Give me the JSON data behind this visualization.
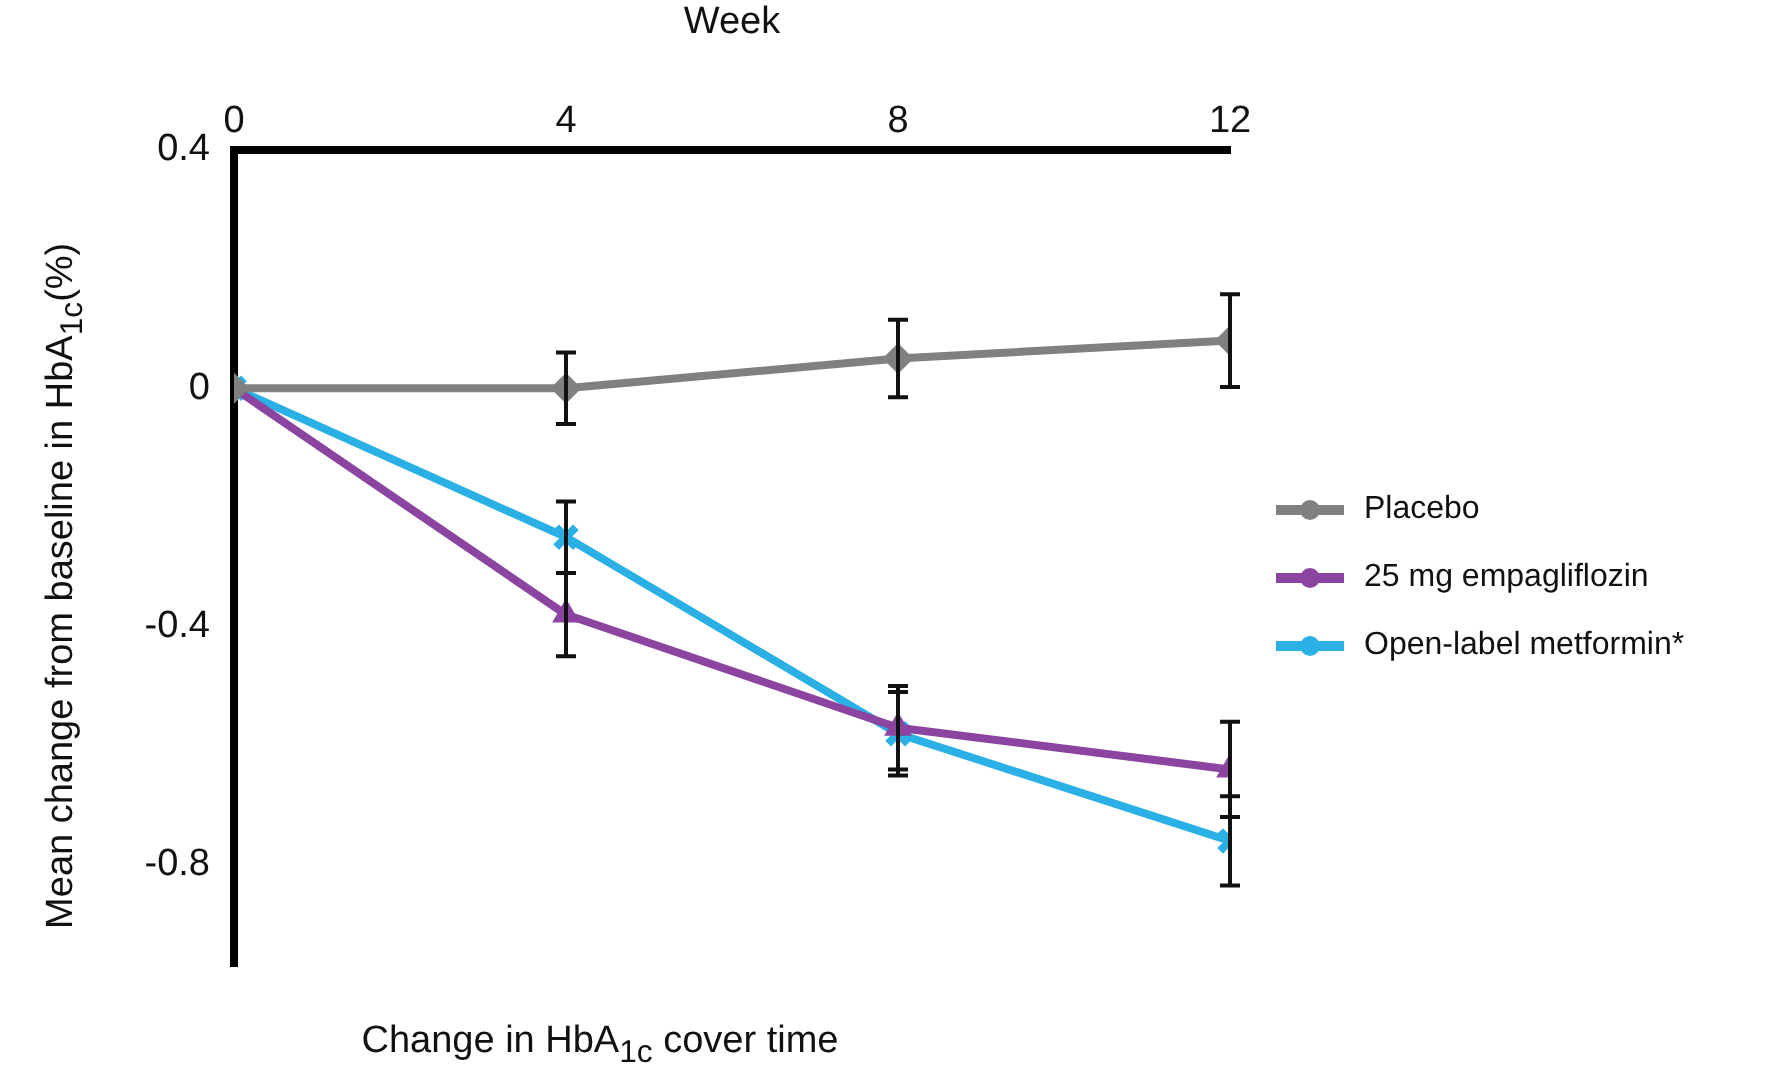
{
  "chart_data": {
    "type": "line",
    "title": "Change in HbA$_{1c}$ cover time",
    "xlabel": "Week",
    "ylabel": "Mean change from baseline in HbA$_{1c}$(%)",
    "x": [
      0,
      4,
      8,
      12
    ],
    "xlim": [
      0,
      12
    ],
    "xticks": [
      0,
      4,
      8,
      12
    ],
    "ylim": [
      -0.97,
      0.4
    ],
    "yticks": [
      0.4,
      0,
      -0.4,
      -0.8
    ],
    "grid": false,
    "legend": "right",
    "series": [
      {
        "name": "Placebo",
        "color": "#808080",
        "marker": "diamond",
        "values": [
          0,
          0,
          0.05,
          0.08
        ],
        "errors": [
          null,
          0.06,
          0.065,
          0.078
        ]
      },
      {
        "name": "25 mg empagliflozin",
        "color": "#8b44a0",
        "marker": "triangle",
        "values": [
          0,
          -0.38,
          -0.57,
          -0.64
        ],
        "errors": [
          null,
          0.07,
          0.07,
          0.08
        ]
      },
      {
        "name": "Open-label metformin*",
        "color": "#2bb0e6",
        "marker": "cross",
        "values": [
          0,
          -0.25,
          -0.58,
          -0.76
        ],
        "errors": [
          null,
          0.06,
          0.07,
          0.075
        ]
      }
    ]
  }
}
